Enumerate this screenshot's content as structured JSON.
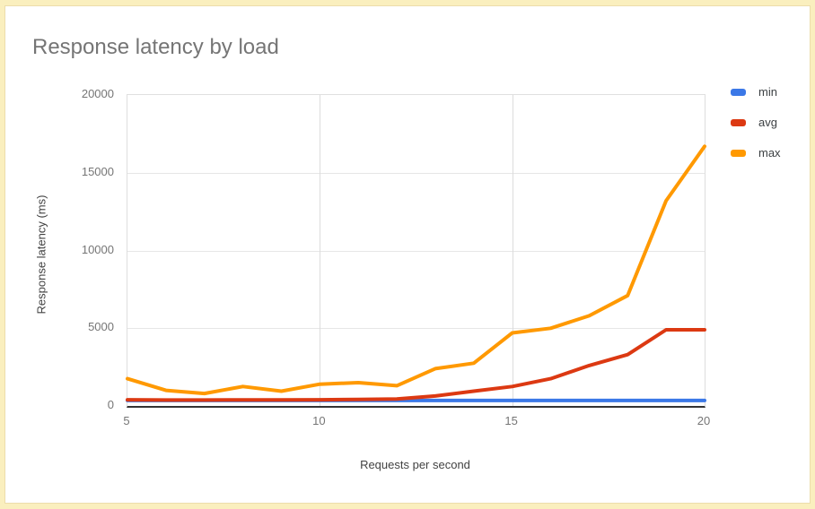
{
  "page": {
    "background_color": "#faefbe",
    "card_background": "#ffffff",
    "card_border_color": "#ecddab"
  },
  "chart": {
    "title": "Response latency by load",
    "x_axis_title": "Requests per second",
    "y_axis_title": "Response latency (ms)"
  },
  "chart_data": {
    "type": "line",
    "title": "Response latency by load",
    "xlabel": "Requests per second",
    "ylabel": "Response latency (ms)",
    "x": [
      5,
      6,
      7,
      8,
      9,
      10,
      11,
      12,
      13,
      14,
      15,
      16,
      17,
      18,
      19,
      20
    ],
    "series": [
      {
        "name": "min",
        "color": "#3b78e7",
        "values": [
          350,
          350,
          350,
          350,
          350,
          350,
          350,
          350,
          350,
          350,
          350,
          350,
          350,
          350,
          350,
          350
        ]
      },
      {
        "name": "avg",
        "color": "#dc3912",
        "values": [
          400,
          380,
          380,
          390,
          390,
          400,
          420,
          450,
          640,
          950,
          1250,
          1750,
          2600,
          3300,
          4900,
          4900
        ]
      },
      {
        "name": "max",
        "color": "#ff9900",
        "values": [
          1750,
          1000,
          800,
          1250,
          950,
          1400,
          1500,
          1300,
          2400,
          2750,
          4700,
          5000,
          5800,
          7100,
          13200,
          16700
        ]
      }
    ],
    "xlim": [
      5,
      20
    ],
    "ylim": [
      0,
      20000
    ],
    "x_ticks": [
      5,
      10,
      15,
      20
    ],
    "y_ticks": [
      0,
      5000,
      10000,
      15000,
      20000
    ],
    "grid": true,
    "legend_position": "right",
    "axis_baseline_color": "#333333",
    "gridline_color": "#e6e6e6",
    "tick_label_color": "#757575",
    "axis_title_color": "#424242",
    "title_color": "#757575"
  }
}
